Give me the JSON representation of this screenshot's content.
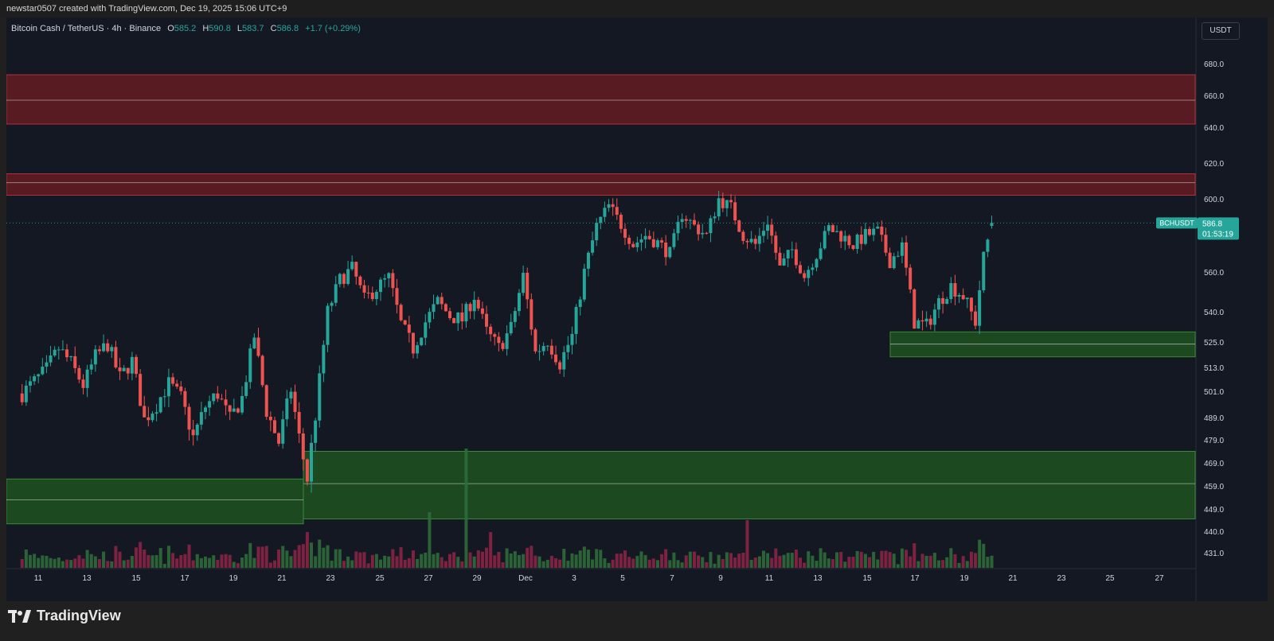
{
  "header": {
    "credit": "newstar0507 created with TradingView.com, Dec 19, 2025 15:06 UTC+9"
  },
  "legend": {
    "symbol": "Bitcoin Cash / TetherUS · 4h · Binance",
    "open_label": "O",
    "open": "585.2",
    "high_label": "H",
    "high": "590.8",
    "low_label": "L",
    "low": "583.7",
    "close_label": "C",
    "close": "586.8",
    "change": "+1.7 (+0.29%)"
  },
  "currency": "USDT",
  "price_tag": {
    "symbol": "BCHUSDT",
    "price": "586.8",
    "countdown": "01:53:19"
  },
  "branding": {
    "name": "TradingView"
  },
  "colors": {
    "background": "#141823",
    "up": "#26a69a",
    "down": "#ef5350",
    "volume_up": "#2e6b3a",
    "volume_down": "#8a2445",
    "resistance_zone": "#6e1c22",
    "support_zone": "#1f5a1f",
    "text": "#d1d4dc"
  },
  "chart_data": {
    "type": "candlestick",
    "symbol": "BCHUSDT",
    "timeframe": "4h",
    "y_ticks": [
      680.0,
      660.0,
      640.0,
      620.0,
      600.0,
      560.0,
      540.0,
      525.0,
      513.0,
      501.0,
      489.0,
      479.0,
      469.0,
      459.0,
      449.0,
      440.0,
      431.0
    ],
    "x_ticks": [
      "11",
      "13",
      "15",
      "17",
      "19",
      "21",
      "23",
      "25",
      "27",
      "29",
      "Dec",
      "3",
      "5",
      "7",
      "9",
      "11",
      "13",
      "15",
      "17",
      "19",
      "21",
      "23",
      "25",
      "27"
    ],
    "last_price": 586.8,
    "zones": [
      {
        "kind": "resistance",
        "top": 673,
        "bottom": 642,
        "mid": 657
      },
      {
        "kind": "resistance",
        "top": 614,
        "bottom": 602,
        "mid": 609
      },
      {
        "kind": "support",
        "top": 530,
        "bottom": 518,
        "mid": 524
      },
      {
        "kind": "support",
        "top": 474,
        "bottom": 445,
        "mid": 460
      },
      {
        "kind": "support",
        "top": 462,
        "bottom": 443,
        "mid": 453
      }
    ],
    "price_path": [
      [
        "Nov 10",
        500
      ],
      [
        "Nov 11",
        512
      ],
      [
        "Nov 11",
        522
      ],
      [
        "Nov 12",
        515
      ],
      [
        "Nov 12",
        504
      ],
      [
        "Nov 13",
        518
      ],
      [
        "Nov 13",
        524
      ],
      [
        "Nov 14",
        508
      ],
      [
        "Nov 14",
        516
      ],
      [
        "Nov 15",
        488
      ],
      [
        "Nov 15",
        495
      ],
      [
        "Nov 16",
        505
      ],
      [
        "Nov 16",
        498
      ],
      [
        "Nov 17",
        480
      ],
      [
        "Nov 17",
        494
      ],
      [
        "Nov 18",
        500
      ],
      [
        "Nov 18",
        488
      ],
      [
        "Nov 19",
        498
      ],
      [
        "Nov 19",
        528
      ],
      [
        "Nov 20",
        492
      ],
      [
        "Nov 20",
        478
      ],
      [
        "Nov 21",
        502
      ],
      [
        "Nov 21",
        480
      ],
      [
        "Nov 21",
        462
      ],
      [
        "Nov 22",
        490
      ],
      [
        "Nov 22",
        540
      ],
      [
        "Nov 23",
        556
      ],
      [
        "Nov 23",
        562
      ],
      [
        "Nov 24",
        546
      ],
      [
        "Nov 24",
        552
      ],
      [
        "Nov 25",
        557
      ],
      [
        "Nov 25",
        534
      ],
      [
        "Nov 26",
        522
      ],
      [
        "Nov 26",
        535
      ],
      [
        "Nov 27",
        545
      ],
      [
        "Nov 27",
        538
      ],
      [
        "Nov 28",
        536
      ],
      [
        "Nov 28",
        548
      ],
      [
        "Nov 29",
        530
      ],
      [
        "Nov 29",
        522
      ],
      [
        "Nov 30",
        532
      ],
      [
        "Nov 30",
        558
      ],
      [
        "Dec 1",
        520
      ],
      [
        "Dec 1",
        526
      ],
      [
        "Dec 2",
        515
      ],
      [
        "Dec 2",
        528
      ],
      [
        "Dec 3",
        560
      ],
      [
        "Dec 3",
        585
      ],
      [
        "Dec 4",
        596
      ],
      [
        "Dec 4",
        586
      ],
      [
        "Dec 5",
        575
      ],
      [
        "Dec 5",
        580
      ],
      [
        "Dec 6",
        576
      ],
      [
        "Dec 6",
        570
      ],
      [
        "Dec 7",
        592
      ],
      [
        "Dec 7",
        585
      ],
      [
        "Dec 8",
        580
      ],
      [
        "Dec 8",
        600
      ],
      [
        "Dec 9",
        595
      ],
      [
        "Dec 9",
        580
      ],
      [
        "Dec 10",
        575
      ],
      [
        "Dec 10",
        588
      ],
      [
        "Dec 11",
        562
      ],
      [
        "Dec 11",
        572
      ],
      [
        "Dec 12",
        558
      ],
      [
        "Dec 12",
        570
      ],
      [
        "Dec 13",
        584
      ],
      [
        "Dec 13",
        580
      ],
      [
        "Dec 14",
        575
      ],
      [
        "Dec 14",
        580
      ],
      [
        "Dec 15",
        582
      ],
      [
        "Dec 15",
        566
      ],
      [
        "Dec 16",
        574
      ],
      [
        "Dec 16",
        535
      ],
      [
        "Dec 17",
        533
      ],
      [
        "Dec 17",
        545
      ],
      [
        "Dec 18",
        553
      ],
      [
        "Dec 18",
        548
      ],
      [
        "Dec 19",
        535
      ],
      [
        "Dec 19",
        568
      ],
      [
        "Dec 19",
        586.8
      ]
    ]
  }
}
